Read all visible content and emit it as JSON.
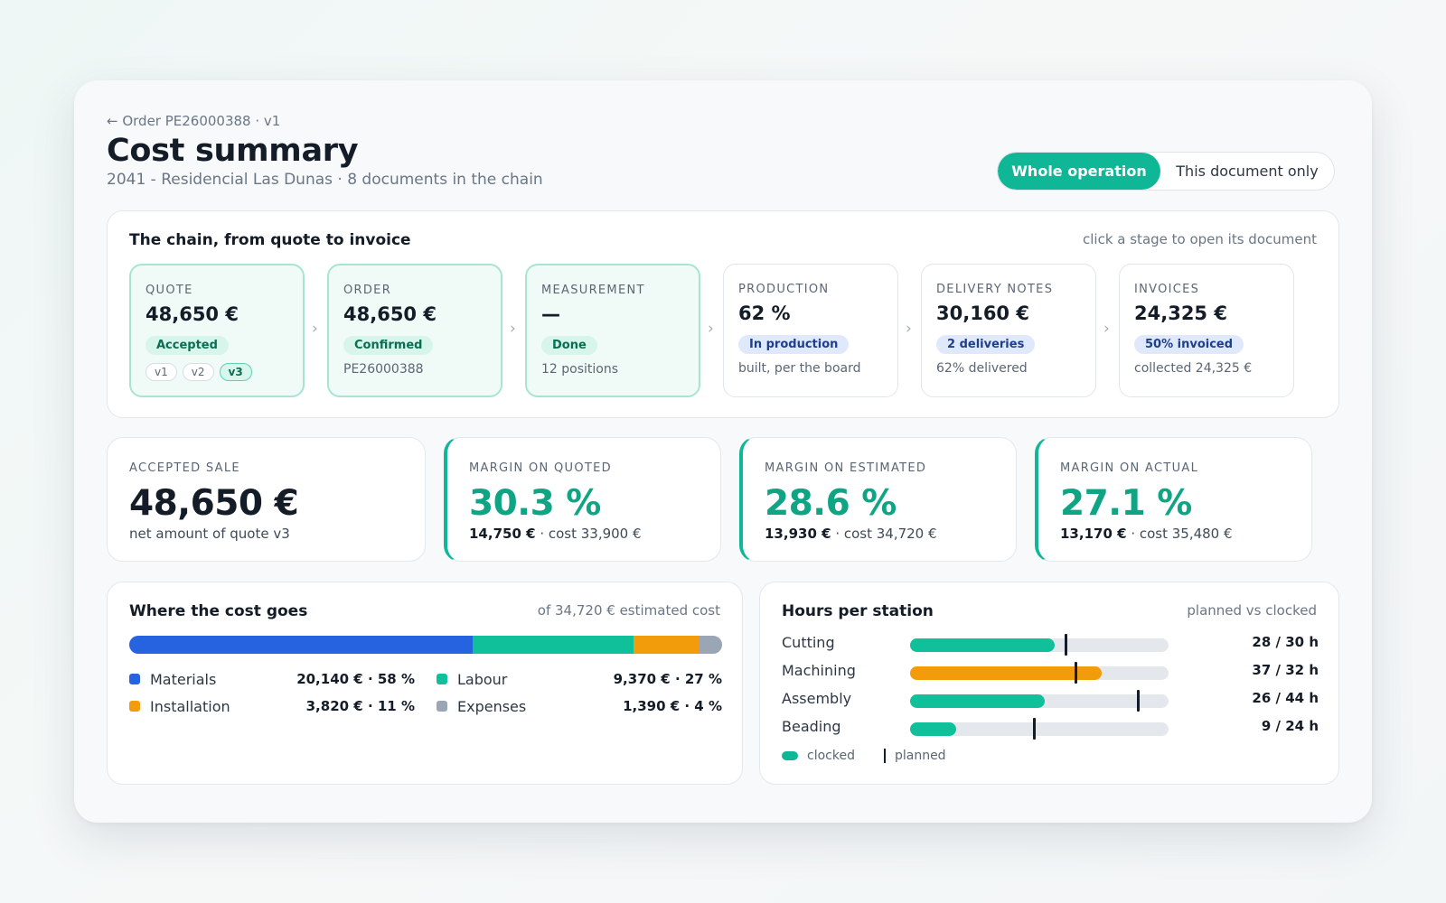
{
  "header": {
    "back": "← Order PE26000388 · v1",
    "title": "Cost summary",
    "subtitle": "2041 - Residencial Las Dunas · 8 documents in the chain"
  },
  "scope_toggle": {
    "active": "Whole operation",
    "inactive": "This document only"
  },
  "chain": {
    "title": "The chain, from quote to invoice",
    "hint": "click a stage to open its document",
    "stages": [
      {
        "label": "QUOTE",
        "value": "48,650 €",
        "badge": "Accepted",
        "versions": [
          "v1",
          "v2",
          "v3"
        ]
      },
      {
        "label": "ORDER",
        "value": "48,650 €",
        "badge": "Confirmed",
        "note": "PE26000388"
      },
      {
        "label": "MEASUREMENT",
        "value": "—",
        "badge": "Done",
        "note": "12 positions"
      },
      {
        "label": "PRODUCTION",
        "value": "62 %",
        "badge": "In production",
        "note": "built, per the board"
      },
      {
        "label": "DELIVERY NOTES",
        "value": "30,160 €",
        "badge": "2 deliveries",
        "note": "62% delivered"
      },
      {
        "label": "INVOICES",
        "value": "24,325 €",
        "badge": "50% invoiced",
        "note": "collected 24,325 €"
      }
    ]
  },
  "kpis": [
    {
      "label": "ACCEPTED SALE",
      "value": "48,650 €",
      "sub": "net amount of quote v3"
    },
    {
      "label": "MARGIN ON QUOTED",
      "value": "30.3 %",
      "amount": "14,750 €",
      "sub": " · cost 33,900 €"
    },
    {
      "label": "MARGIN ON ESTIMATED",
      "value": "28.6 %",
      "amount": "13,930 €",
      "sub": " · cost 34,720 €"
    },
    {
      "label": "MARGIN ON ACTUAL",
      "value": "27.1 %",
      "amount": "13,170 €",
      "sub": " · cost 35,480 €"
    }
  ],
  "cost": {
    "title": "Where the cost goes",
    "hint": "of 34,720 € estimated cost",
    "items": [
      {
        "name": "Materials",
        "amount": "20,140 € · 58 %",
        "share": 58,
        "color": "#2563e0"
      },
      {
        "name": "Labour",
        "amount": "9,370 € · 27 %",
        "share": 27,
        "color": "#10c09b"
      },
      {
        "name": "Installation",
        "amount": "3,820 € · 11 %",
        "share": 11,
        "color": "#f29b0b"
      },
      {
        "name": "Expenses",
        "amount": "1,390 € · 4 %",
        "share": 4,
        "color": "#9aa6b4"
      }
    ]
  },
  "hours": {
    "title": "Hours per station",
    "hint": "planned vs clocked",
    "max_scale": 50,
    "rows": [
      {
        "station": "Cutting",
        "clocked": 28,
        "planned": 30,
        "text": "28 / 30 h",
        "color": "#10c09b"
      },
      {
        "station": "Machining",
        "clocked": 37,
        "planned": 32,
        "text": "37 / 32 h",
        "color": "#f29b0b"
      },
      {
        "station": "Assembly",
        "clocked": 26,
        "planned": 44,
        "text": "26 / 44 h",
        "color": "#10c09b"
      },
      {
        "station": "Beading",
        "clocked": 9,
        "planned": 24,
        "text": "9 / 24 h",
        "color": "#10c09b"
      }
    ],
    "legend_clocked": "clocked",
    "legend_planned": "planned"
  }
}
